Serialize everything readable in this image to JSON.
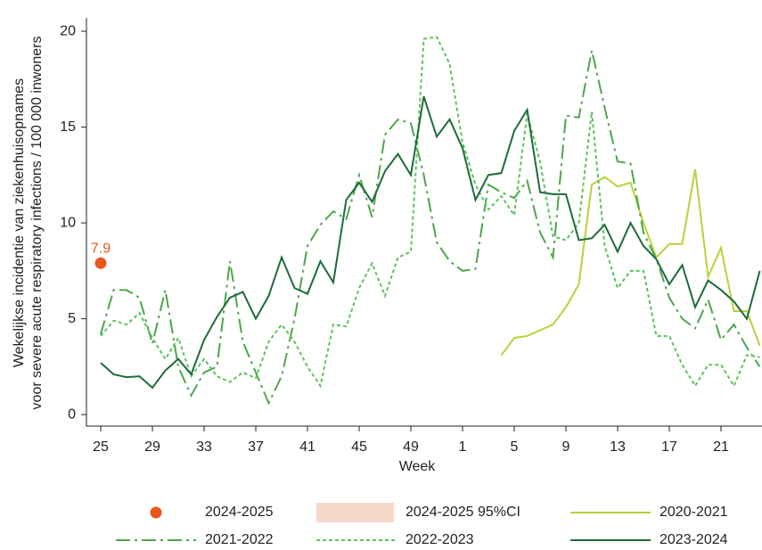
{
  "chart_data": {
    "type": "line",
    "y_label": [
      "Wekelijkse incidentie van ziekenhuisopnames",
      "voor severe acute respiratory infections / 100 000 inwoners"
    ],
    "x_label": "Week",
    "categories": [
      "25",
      null,
      null,
      null,
      "29",
      null,
      null,
      null,
      "33",
      null,
      null,
      null,
      "37",
      null,
      null,
      null,
      "41",
      null,
      null,
      null,
      "45",
      null,
      null,
      null,
      "49",
      null,
      null,
      null,
      "1",
      null,
      null,
      null,
      "5",
      null,
      null,
      null,
      "9",
      null,
      null,
      null,
      "13",
      null,
      null,
      null,
      "17",
      null,
      null,
      null,
      "21",
      null,
      null,
      null
    ],
    "ylim": [
      -0.6,
      20.7
    ],
    "yticks": [
      0,
      5,
      10,
      15,
      20
    ],
    "grid": false,
    "series": [
      {
        "name": "2024-2025",
        "color": "#e8561b",
        "style": "marker",
        "values": [
          7.9,
          null,
          null,
          null,
          null,
          null,
          null,
          null,
          null,
          null,
          null,
          null,
          null,
          null,
          null,
          null,
          null,
          null,
          null,
          null,
          null,
          null,
          null,
          null,
          null,
          null,
          null,
          null,
          null,
          null,
          null,
          null,
          null,
          null,
          null,
          null,
          null,
          null,
          null,
          null,
          null,
          null,
          null,
          null,
          null,
          null,
          null,
          null,
          null,
          null,
          null,
          null
        ],
        "value_labels": [
          "7.9",
          null,
          null,
          null,
          null,
          null,
          null,
          null,
          null,
          null,
          null,
          null,
          null,
          null,
          null,
          null,
          null,
          null,
          null,
          null,
          null,
          null,
          null,
          null,
          null,
          null,
          null,
          null,
          null,
          null,
          null,
          null,
          null,
          null,
          null,
          null,
          null,
          null,
          null,
          null,
          null,
          null,
          null,
          null,
          null,
          null,
          null,
          null,
          null,
          null,
          null,
          null
        ]
      },
      {
        "name": "2020-2021",
        "color": "#b5d43a",
        "style": "solid",
        "values": [
          null,
          null,
          null,
          null,
          null,
          null,
          null,
          null,
          null,
          null,
          null,
          null,
          null,
          null,
          null,
          null,
          null,
          null,
          null,
          null,
          null,
          null,
          null,
          null,
          null,
          null,
          null,
          null,
          null,
          null,
          null,
          3.1,
          4.0,
          4.1,
          4.4,
          4.7,
          5.6,
          6.8,
          12.0,
          12.4,
          11.9,
          12.1,
          10.0,
          8.2,
          8.9,
          8.9,
          12.8,
          7.2,
          8.7,
          5.4,
          5.4,
          3.6
        ]
      },
      {
        "name": "2021-2022",
        "color": "#4ea64a",
        "style": "dashdot",
        "values": [
          4.2,
          6.5,
          6.5,
          6.1,
          3.7,
          6.5,
          2.5,
          1.0,
          2.2,
          2.5,
          8.0,
          3.8,
          2.2,
          0.6,
          2.0,
          5.0,
          8.8,
          9.9,
          10.6,
          10.2,
          12.5,
          10.3,
          14.6,
          15.4,
          15.2,
          12.5,
          9.0,
          8.0,
          7.5,
          7.6,
          12.0,
          11.6,
          11.3,
          12.2,
          9.5,
          8.2,
          15.6,
          15.5,
          19.0,
          16.0,
          13.2,
          13.1,
          9.5,
          8.1,
          6.1,
          5.0,
          4.5,
          6.0,
          3.9,
          4.7,
          3.5,
          2.5
        ]
      },
      {
        "name": "2022-2023",
        "color": "#5cc45c",
        "style": "dotted",
        "values": [
          4.1,
          4.9,
          4.7,
          5.3,
          4.0,
          2.9,
          4.0,
          2.0,
          2.9,
          2.0,
          1.7,
          2.2,
          1.9,
          3.8,
          4.7,
          3.8,
          2.5,
          1.5,
          4.7,
          4.6,
          6.6,
          7.9,
          6.2,
          8.2,
          8.5,
          19.6,
          19.7,
          18.3,
          14.2,
          12.0,
          10.7,
          11.4,
          10.4,
          15.7,
          13.2,
          9.3,
          9.1,
          10.0,
          15.8,
          8.8,
          6.6,
          7.5,
          7.5,
          4.1,
          4.1,
          2.6,
          1.5,
          2.6,
          2.6,
          1.5,
          3.1,
          3.0
        ]
      },
      {
        "name": "2023-2024",
        "color": "#1e6b3a",
        "style": "solid",
        "values": [
          2.7,
          2.1,
          1.95,
          2.0,
          1.4,
          2.3,
          2.9,
          2.1,
          3.9,
          5.1,
          6.1,
          6.4,
          5.0,
          6.2,
          8.2,
          6.6,
          6.3,
          8.0,
          6.9,
          11.2,
          12.1,
          11.1,
          12.7,
          13.6,
          12.5,
          16.6,
          14.5,
          15.4,
          13.9,
          11.2,
          12.5,
          12.6,
          14.8,
          15.9,
          11.6,
          11.5,
          11.5,
          9.1,
          9.2,
          9.9,
          8.5,
          10.0,
          8.8,
          8.1,
          6.8,
          7.8,
          5.6,
          7.0,
          6.5,
          5.9,
          5.0,
          7.5
        ]
      }
    ],
    "ci_band": {
      "name": "2024-2025 95%CI",
      "color": "#f8d8cb"
    }
  }
}
